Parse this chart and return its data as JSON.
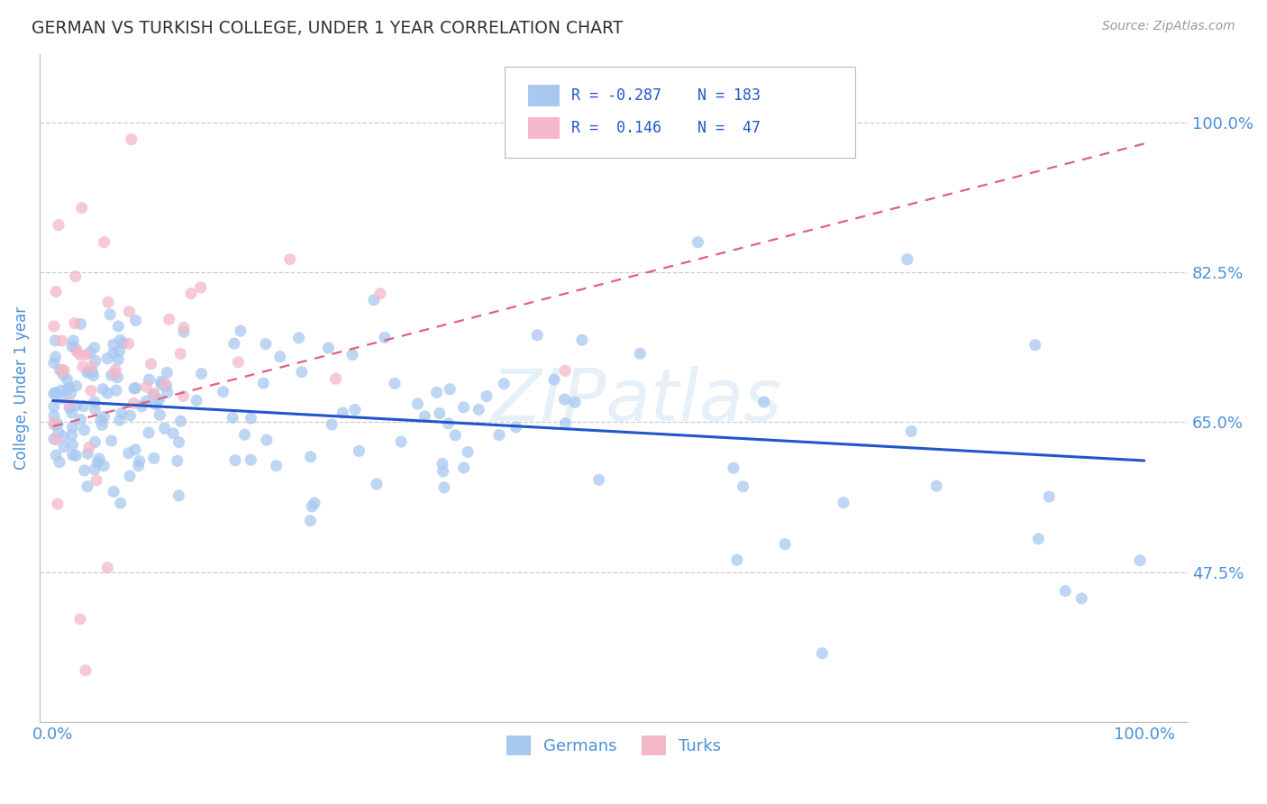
{
  "title": "GERMAN VS TURKISH COLLEGE, UNDER 1 YEAR CORRELATION CHART",
  "source": "Source: ZipAtlas.com",
  "ylabel": "College, Under 1 year",
  "ytick_labels": [
    "47.5%",
    "65.0%",
    "82.5%",
    "100.0%"
  ],
  "ytick_values": [
    0.475,
    0.65,
    0.825,
    1.0
  ],
  "watermark": "ZIPatlas",
  "german_color": "#a8c8f0",
  "turk_color": "#f4b8c8",
  "german_line_color": "#2255cc",
  "turk_line_color": "#e06080",
  "background_color": "#ffffff",
  "grid_color": "#cccccc",
  "title_color": "#333333",
  "axis_label_color": "#4a90d9",
  "legend_text_color": "#2255cc",
  "legend_R_german": "R = -0.287",
  "legend_N_german": "N = 183",
  "legend_R_turk": "R =  0.146",
  "legend_N_turk": "N =  47"
}
